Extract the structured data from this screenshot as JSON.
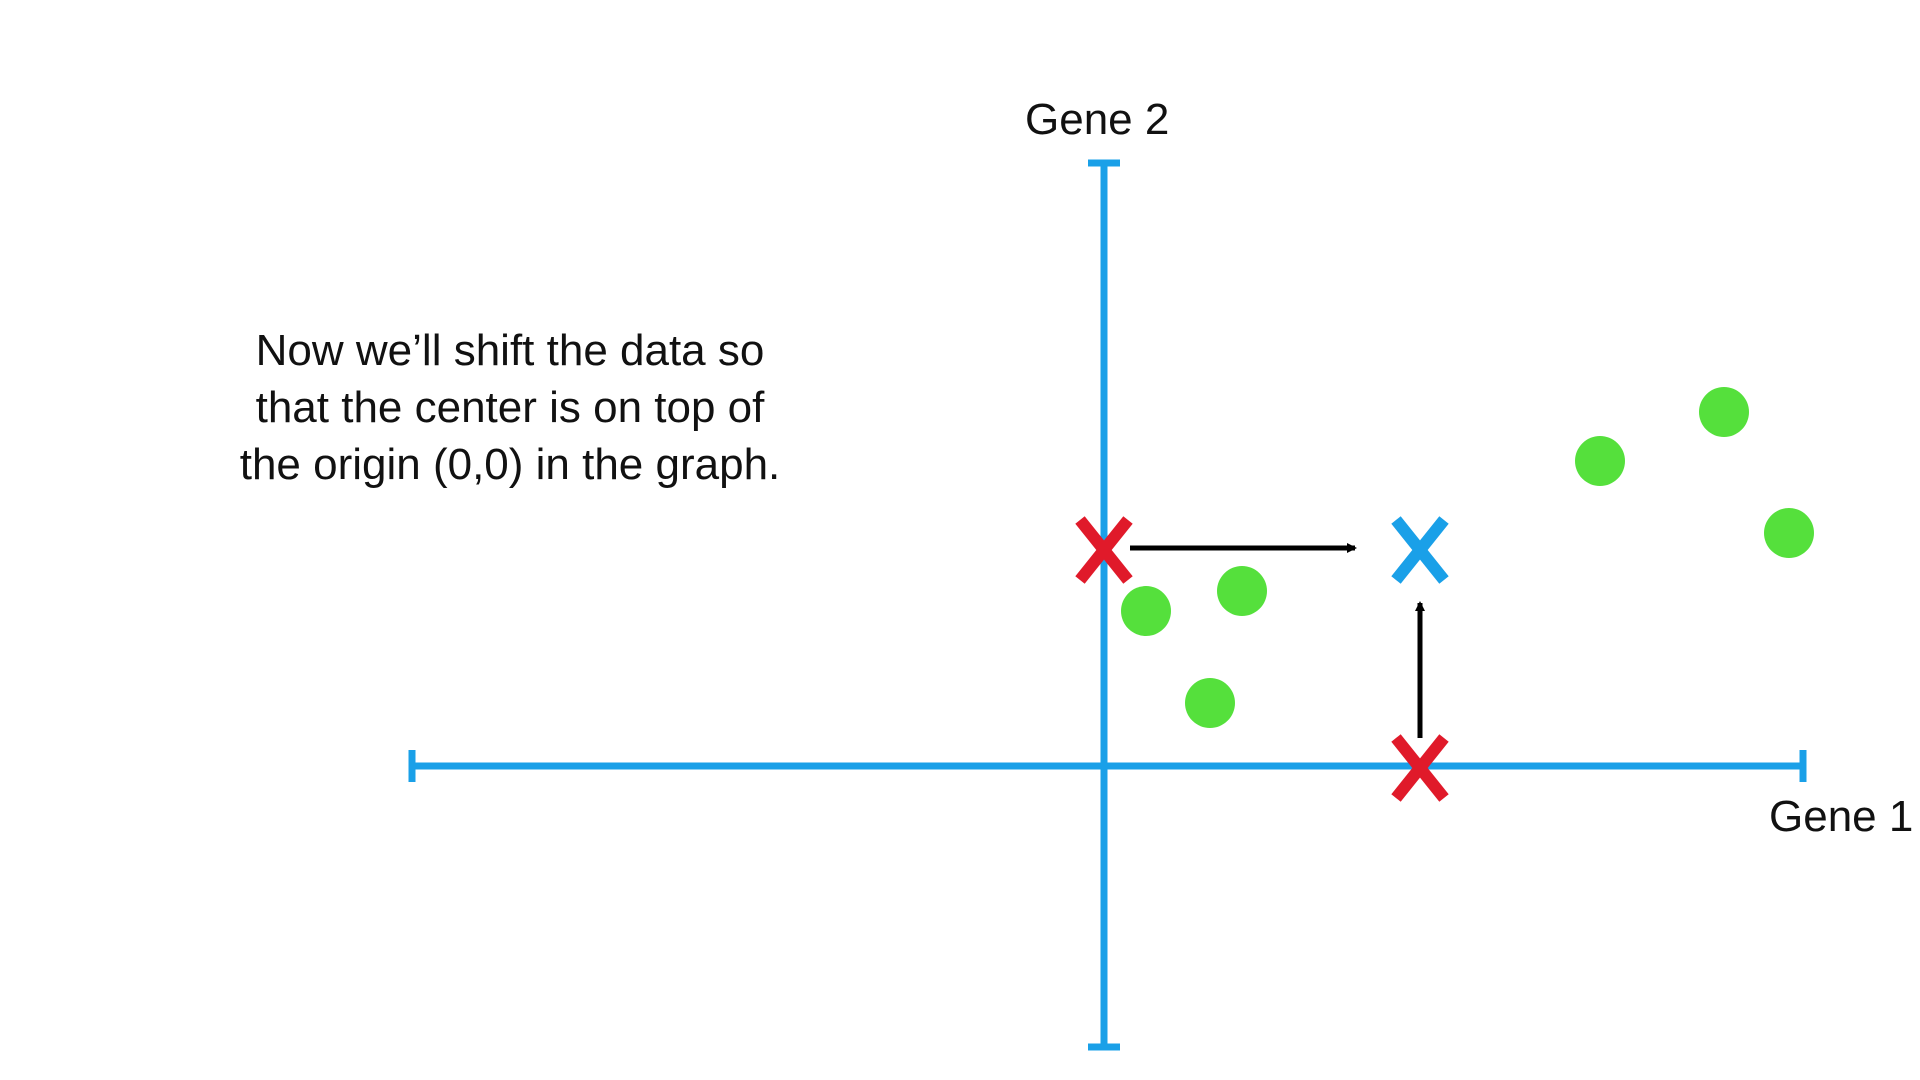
{
  "caption": {
    "lines": [
      "Now we’ll shift the data so",
      "that the center is on top of",
      "the origin (0,0) in the graph."
    ]
  },
  "axes": {
    "x_label": "Gene 1",
    "y_label": "Gene 2",
    "color": "#1aa0e8"
  },
  "points": {
    "color": "#55e03c",
    "items": [
      {
        "name": "point-1"
      },
      {
        "name": "point-2"
      },
      {
        "name": "point-3"
      },
      {
        "name": "point-4"
      },
      {
        "name": "point-5"
      },
      {
        "name": "point-6"
      }
    ]
  },
  "markers": {
    "center_color": "#1aa0e8",
    "projection_color": "#e01a2a",
    "arrow_color": "#000000",
    "glyph": "X"
  }
}
